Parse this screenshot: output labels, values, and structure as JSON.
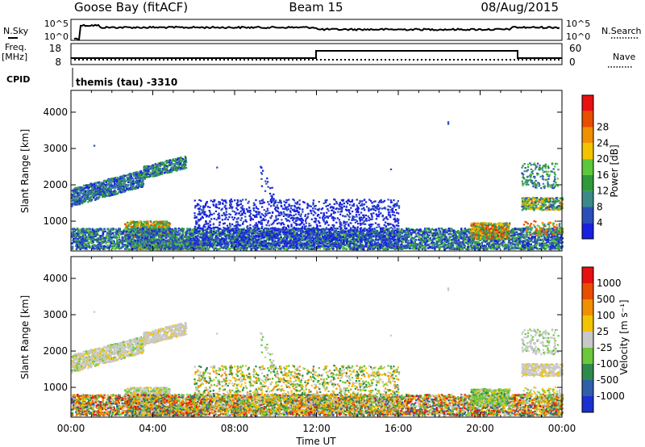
{
  "header": {
    "station": "Goose Bay (fitACF)",
    "beam": "Beam 15",
    "date": "08/Aug/2015"
  },
  "top_panels": {
    "nsky_label": "N.Sky",
    "nsearch_label": "N.Search",
    "noise_ticks": [
      "10^5",
      "10^0"
    ],
    "freq_label_1": "Freq.",
    "freq_label_2": "[MHz]",
    "freq_ticks": [
      "18",
      "8"
    ],
    "nave_label": "Nave",
    "nave_ticks": [
      "60",
      "0"
    ],
    "cpid_label": "CPID",
    "cpid_value": "themis (tau) -3310"
  },
  "chart_data": [
    {
      "type": "heatmap",
      "name": "power",
      "ylabel": "Slant Range [km]",
      "yticks": [
        1000,
        2000,
        3000,
        4000
      ],
      "ylim": [
        180,
        4600
      ],
      "xlabel": "Time UT",
      "xticks": [
        "00:00",
        "04:00",
        "08:00",
        "12:00",
        "16:00",
        "20:00",
        "00:00"
      ],
      "xlim_hours": [
        0,
        24
      ],
      "colorbar_label": "Power [dB]",
      "colorbar_ticks": [
        "4",
        "8",
        "12",
        "16",
        "20",
        "24",
        "28"
      ],
      "colorbar_colors": [
        "#1a20e0",
        "#2a50b8",
        "#3a8a8a",
        "#2e9a3a",
        "#5ac83a",
        "#f2c400",
        "#f09000",
        "#e84d00",
        "#e81010"
      ]
    },
    {
      "type": "heatmap",
      "name": "velocity",
      "ylabel": "Slant Range [km]",
      "yticks": [
        1000,
        2000,
        3000,
        4000
      ],
      "ylim": [
        180,
        4600
      ],
      "xlabel": "Time UT",
      "xticks": [
        "00:00",
        "04:00",
        "08:00",
        "12:00",
        "16:00",
        "20:00",
        "00:00"
      ],
      "xlim_hours": [
        0,
        24
      ],
      "colorbar_label": "Velocity [m s⁻¹]",
      "colorbar_ticks": [
        "1000",
        "500",
        "100",
        "25",
        "-25",
        "-100",
        "-500",
        "-1000"
      ],
      "colorbar_colors": [
        "#1a30d0",
        "#2e5fa8",
        "#2e8a4a",
        "#6ac83a",
        "#c8c8c8",
        "#f2c400",
        "#f09000",
        "#e84d00",
        "#e81010"
      ]
    }
  ]
}
